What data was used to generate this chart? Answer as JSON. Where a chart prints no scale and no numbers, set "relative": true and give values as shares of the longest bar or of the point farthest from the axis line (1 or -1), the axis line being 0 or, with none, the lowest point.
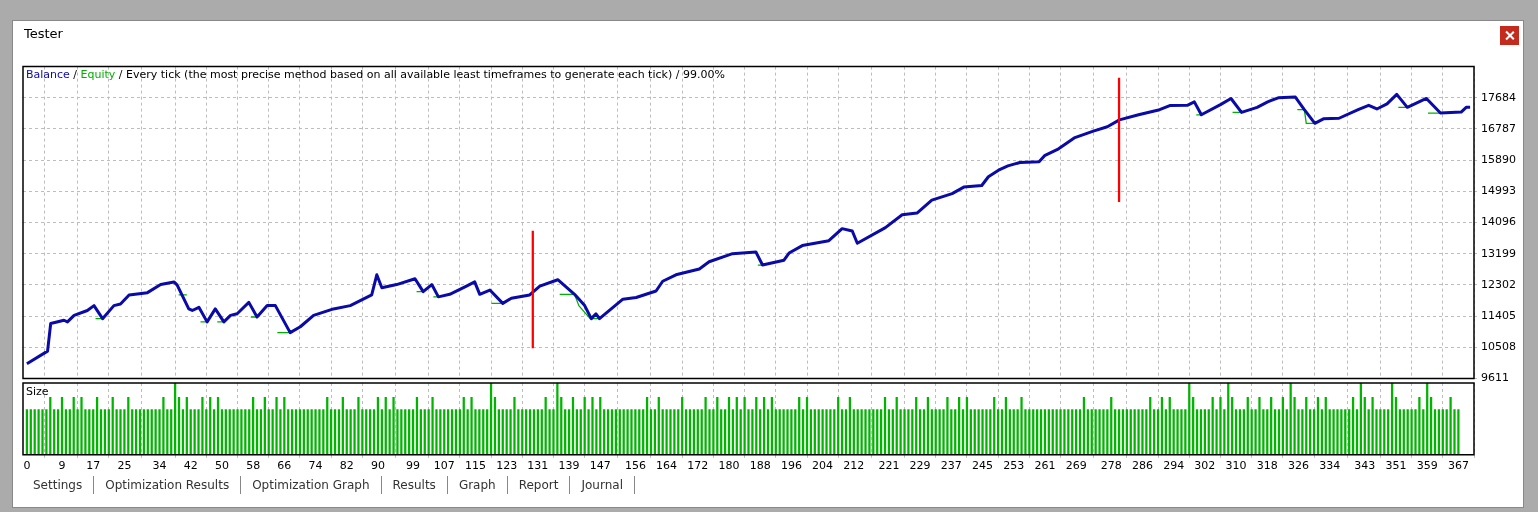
{
  "chart_data": [
    {
      "type": "line",
      "title": "Every tick (the most precise method based on all available least timeframes to generate each tick) / 99.00%",
      "annotations": [
        "Tester",
        "/"
      ],
      "legend": "top left",
      "grid": true,
      "tick_labels": "y",
      "xlim": [
        -1,
        371
      ],
      "xticks": [
        0,
        9,
        17,
        25,
        34,
        42,
        50,
        58,
        66,
        74,
        82,
        90,
        99,
        107,
        115,
        123,
        131,
        139,
        147,
        156,
        164,
        172,
        180,
        188,
        196,
        204,
        212,
        221,
        229,
        237,
        245,
        253,
        261,
        269,
        278,
        286,
        294,
        302,
        310,
        318,
        326,
        334,
        343,
        351,
        359,
        367
      ],
      "ylim": [
        9611,
        18581
      ],
      "yticks": [
        9611,
        10508,
        11405,
        12302,
        13199,
        14096,
        14993,
        15890,
        16787,
        17684
      ],
      "series": [
        {
          "name": "Balance",
          "color": "#0a0aa8",
          "x": [
            0,
            5.3,
            6.1,
            9.5,
            10.4,
            12.1,
            15.5,
            17.2,
            19.4,
            22.3,
            24,
            26.2,
            30.9,
            34.3,
            37.7,
            38.5,
            41.5,
            42.4,
            44.1,
            46.2,
            48.3,
            50.5,
            52.2,
            53.9,
            56.9,
            59,
            61.6,
            63.7,
            67.5,
            70.1,
            73.5,
            78.6,
            82.9,
            88.4,
            89.7,
            91,
            94.8,
            99.5,
            101.6,
            103.8,
            105.5,
            108.4,
            112.7,
            114.8,
            116.1,
            118.7,
            122,
            124.2,
            128.9,
            131.5,
            136.1,
            140.4,
            143,
            144.7,
            145.9,
            146.8,
            152.8,
            156.2,
            161.3,
            163,
            166.4,
            172.4,
            174.9,
            180.9,
            186.9,
            188.6,
            194.1,
            195.4,
            198.8,
            205.6,
            209,
            211.6,
            212.9,
            220.1,
            224.4,
            228.2,
            232,
            237.2,
            240.2,
            244.8,
            246.5,
            249.1,
            251.5,
            254.6,
            259.5,
            260.9,
            264.5,
            268.5,
            273.4,
            277,
            280.1,
            285,
            290.4,
            293,
            297.5,
            299.3,
            301.1,
            306,
            308.7,
            311.4,
            315.4,
            318.1,
            320.8,
            325.2,
            327.5,
            330.2,
            332.4,
            336.4,
            341.3,
            344,
            346.1,
            348.7,
            351.2,
            353.9,
            358.8,
            362.4,
            367.7,
            369,
            370
          ],
          "values": [
            10031,
            10396,
            11190,
            11284,
            11237,
            11425,
            11565,
            11705,
            11330,
            11705,
            11750,
            12013,
            12078,
            12310,
            12386,
            12302,
            11610,
            11565,
            11657,
            11237,
            11610,
            11237,
            11425,
            11471,
            11798,
            11377,
            11705,
            11705,
            10928,
            11097,
            11425,
            11610,
            11705,
            12013,
            12591,
            12218,
            12310,
            12478,
            12106,
            12310,
            11957,
            12030,
            12265,
            12386,
            12030,
            12153,
            11769,
            11918,
            12013,
            12265,
            12450,
            12030,
            11705,
            11330,
            11470,
            11330,
            11890,
            11937,
            12125,
            12406,
            12591,
            12760,
            12966,
            13199,
            13246,
            12872,
            13012,
            13218,
            13432,
            13572,
            13919,
            13852,
            13498,
            13947,
            14320,
            14368,
            14741,
            14928,
            15114,
            15161,
            15413,
            15601,
            15724,
            15822,
            15842,
            16019,
            16215,
            16529,
            16725,
            16851,
            17047,
            17195,
            17341,
            17459,
            17468,
            17566,
            17195,
            17487,
            17664,
            17263,
            17409,
            17566,
            17684,
            17703,
            17341,
            16949,
            17078,
            17095,
            17341,
            17468,
            17362,
            17508,
            17782,
            17409,
            17664,
            17244,
            17274,
            17409,
            17409
          ]
        },
        {
          "name": "Equity",
          "color": "#00b000",
          "x": [
            17.6,
            19.4,
            19.5,
            38.9,
            41,
            41.2,
            44.5,
            46.2,
            46.3,
            48.8,
            50.5,
            50.6,
            57.4,
            59,
            59.1,
            64.2,
            67.5,
            67.6,
            99.9,
            101.6,
            101.7,
            104.2,
            105.5,
            105.6,
            119.1,
            122,
            122.1,
            136.6,
            140.4,
            141.5,
            144.4,
            146.8,
            146.9,
            187.4,
            188.6,
            188.7,
            299.8,
            301.1,
            301.2,
            309.1,
            311.4,
            311.5,
            325.7,
            327.5,
            328,
            330.2,
            330.3,
            351.6,
            353.9,
            354,
            359.2,
            362.4
          ],
          "values": [
            11330,
            11330,
            null,
            12012,
            12012,
            null,
            11237,
            11237,
            null,
            11237,
            11237,
            null,
            11377,
            11377,
            null,
            10928,
            10928,
            null,
            12106,
            12106,
            null,
            11957,
            11957,
            null,
            11769,
            11769,
            null,
            12030,
            12030,
            11705,
            11330,
            11330,
            null,
            12872,
            12872,
            null,
            17195,
            17195,
            null,
            17263,
            17263,
            null,
            17341,
            17341,
            16949,
            16949,
            null,
            17409,
            17409,
            null,
            17244,
            17244
          ]
        },
        {
          "type": "bar",
          "color": "#ff0000",
          "x": [
            129.7,
            280
          ],
          "base": [
            10488,
            14696
          ],
          "values": [
            3364,
            3557
          ]
        }
      ]
    },
    {
      "type": "bar",
      "title": "Size",
      "relative": true,
      "grid": "x",
      "tick_labels": "x",
      "annotations": [
        "Settings",
        "Optimization Results",
        "Optimization Graph",
        "Results",
        "Graph",
        "Report",
        "Journal"
      ],
      "xlim": [
        -1,
        371
      ],
      "xticks": [
        0,
        9,
        17,
        25,
        34,
        42,
        50,
        58,
        66,
        74,
        82,
        90,
        99,
        107,
        115,
        123,
        131,
        139,
        147,
        156,
        164,
        172,
        180,
        188,
        196,
        204,
        212,
        221,
        229,
        237,
        245,
        253,
        261,
        269,
        278,
        286,
        294,
        302,
        310,
        318,
        326,
        334,
        343,
        351,
        359,
        367
      ],
      "series": [
        {
          "color": "#00b400",
          "x": [
            0,
            1,
            2,
            3,
            4,
            5,
            6,
            7,
            8,
            9,
            10,
            11,
            12,
            13,
            14,
            15,
            16,
            17,
            18,
            19,
            20,
            21,
            22,
            23,
            24,
            25,
            26,
            27,
            28,
            29,
            30,
            31,
            32,
            33,
            34,
            35,
            36,
            37,
            38,
            39,
            40,
            41,
            42,
            43,
            44,
            45,
            46,
            47,
            48,
            49,
            50,
            51,
            52,
            53,
            54,
            55,
            56,
            57,
            58,
            59,
            60,
            61,
            62,
            63,
            64,
            65,
            66,
            67,
            68,
            69,
            70,
            71,
            72,
            73,
            74,
            75,
            76,
            77,
            78,
            79,
            80,
            81,
            82,
            83,
            84,
            85,
            86,
            87,
            88,
            89,
            90,
            91,
            92,
            93,
            94,
            95,
            96,
            97,
            98,
            99,
            100,
            101,
            102,
            103,
            104,
            105,
            106,
            107,
            108,
            109,
            110,
            111,
            112,
            113,
            114,
            115,
            116,
            117,
            118,
            119,
            120,
            121,
            122,
            123,
            124,
            125,
            126,
            127,
            128,
            129,
            130,
            131,
            132,
            133,
            134,
            135,
            136,
            137,
            138,
            139,
            140,
            141,
            142,
            143,
            144,
            145,
            146,
            147,
            148,
            149,
            150,
            151,
            152,
            153,
            154,
            155,
            156,
            157,
            158,
            159,
            160,
            161,
            162,
            163,
            164,
            165,
            166,
            167,
            168,
            169,
            170,
            171,
            172,
            173,
            174,
            175,
            176,
            177,
            178,
            179,
            180,
            181,
            182,
            183,
            184,
            185,
            186,
            187,
            188,
            189,
            190,
            191,
            192,
            193,
            194,
            195,
            196,
            197,
            198,
            199,
            200,
            201,
            202,
            203,
            204,
            205,
            206,
            207,
            208,
            209,
            210,
            211,
            212,
            213,
            214,
            215,
            216,
            217,
            218,
            219,
            220,
            221,
            222,
            223,
            224,
            225,
            226,
            227,
            228,
            229,
            230,
            231,
            232,
            233,
            234,
            235,
            236,
            237,
            238,
            239,
            240,
            241,
            242,
            243,
            244,
            245,
            246,
            247,
            248,
            249,
            250,
            251,
            252,
            253,
            254,
            255,
            256,
            257,
            258,
            259,
            260,
            261,
            262,
            263,
            264,
            265,
            266,
            267,
            268,
            269,
            270,
            271,
            272,
            273,
            274,
            275,
            276,
            277,
            278,
            279,
            280,
            281,
            282,
            283,
            284,
            285,
            286,
            287,
            288,
            289,
            290,
            291,
            292,
            293,
            294,
            295,
            296,
            297,
            298,
            299,
            300,
            301,
            302,
            303,
            304,
            305,
            306,
            307,
            308,
            309,
            310,
            311,
            312,
            313,
            314,
            315,
            316,
            317,
            318,
            319,
            320,
            321,
            322,
            323,
            324,
            325,
            326,
            327,
            328,
            329,
            330,
            331,
            332,
            333,
            334,
            335,
            336,
            337,
            338,
            339,
            340,
            341,
            342,
            343,
            344,
            345,
            346,
            347,
            348,
            349,
            350,
            351,
            352,
            353,
            354,
            355,
            356,
            357,
            358,
            359,
            360,
            361,
            362,
            363,
            364,
            365,
            366,
            367
          ],
          "values": [
            0.63,
            0.63,
            0.63,
            0.63,
            0.63,
            0.63,
            0.8,
            0.63,
            0.63,
            0.8,
            0.63,
            0.63,
            0.8,
            0.63,
            0.8,
            0.63,
            0.63,
            0.63,
            0.8,
            0.63,
            0.63,
            0.63,
            0.8,
            0.63,
            0.63,
            0.63,
            0.8,
            0.63,
            0.63,
            0.63,
            0.63,
            0.63,
            0.63,
            0.63,
            0.63,
            0.8,
            0.63,
            0.63,
            1,
            0.8,
            0.63,
            0.8,
            0.63,
            0.63,
            0.63,
            0.8,
            0.63,
            0.8,
            0.63,
            0.8,
            0.63,
            0.63,
            0.63,
            0.63,
            0.63,
            0.63,
            0.63,
            0.63,
            0.8,
            0.63,
            0.63,
            0.8,
            0.63,
            0.63,
            0.8,
            0.63,
            0.8,
            0.63,
            0.63,
            0.63,
            0.63,
            0.63,
            0.63,
            0.63,
            0.63,
            0.63,
            0.63,
            0.8,
            0.63,
            0.63,
            0.63,
            0.8,
            0.63,
            0.63,
            0.63,
            0.8,
            0.63,
            0.63,
            0.63,
            0.63,
            0.8,
            0.63,
            0.8,
            0.63,
            0.8,
            0.63,
            0.63,
            0.63,
            0.63,
            0.63,
            0.8,
            0.63,
            0.63,
            0.63,
            0.8,
            0.63,
            0.63,
            0.63,
            0.63,
            0.63,
            0.63,
            0.63,
            0.8,
            0.63,
            0.8,
            0.63,
            0.63,
            0.63,
            0.63,
            1,
            0.8,
            0.63,
            0.63,
            0.63,
            0.63,
            0.8,
            0.63,
            0.63,
            0.63,
            0.63,
            0.63,
            0.63,
            0.63,
            0.8,
            0.63,
            0.63,
            1,
            0.8,
            0.63,
            0.63,
            0.8,
            0.63,
            0.63,
            0.8,
            0.63,
            0.8,
            0.63,
            0.8,
            0.63,
            0.63,
            0.63,
            0.63,
            0.63,
            0.63,
            0.63,
            0.63,
            0.63,
            0.63,
            0.63,
            0.8,
            0.63,
            0.63,
            0.8,
            0.63,
            0.63,
            0.63,
            0.63,
            0.63,
            0.8,
            0.63,
            0.63,
            0.63,
            0.63,
            0.63,
            0.8,
            0.63,
            0.63,
            0.8,
            0.63,
            0.63,
            0.8,
            0.63,
            0.8,
            0.63,
            0.8,
            0.63,
            0.63,
            0.8,
            0.63,
            0.8,
            0.63,
            0.8,
            0.63,
            0.63,
            0.63,
            0.63,
            0.63,
            0.63,
            0.8,
            0.63,
            0.8,
            0.63,
            0.63,
            0.63,
            0.63,
            0.63,
            0.63,
            0.63,
            0.8,
            0.63,
            0.63,
            0.8,
            0.63,
            0.63,
            0.63,
            0.63,
            0.63,
            0.63,
            0.63,
            0.63,
            0.8,
            0.63,
            0.63,
            0.8,
            0.63,
            0.63,
            0.63,
            0.63,
            0.8,
            0.63,
            0.63,
            0.8,
            0.63,
            0.63,
            0.63,
            0.63,
            0.8,
            0.63,
            0.63,
            0.8,
            0.63,
            0.8,
            0.63,
            0.63,
            0.63,
            0.63,
            0.63,
            0.63,
            0.8,
            0.63,
            0.63,
            0.8,
            0.63,
            0.63,
            0.63,
            0.8,
            0.63,
            0.63,
            0.63,
            0.63,
            0.63,
            0.63,
            0.63,
            0.63,
            0.63,
            0.63,
            0.63,
            0.63,
            0.63,
            0.63,
            0.63,
            0.8,
            0.63,
            0.63,
            0.63,
            0.63,
            0.63,
            0.63,
            0.8,
            0.63,
            0.63,
            0.63,
            0.63,
            0.63,
            0.63,
            0.63,
            0.63,
            0.63,
            0.8,
            0.63,
            0.63,
            0.8,
            0.63,
            0.8,
            0.63,
            0.63,
            0.63,
            0.63,
            1,
            0.8,
            0.63,
            0.63,
            0.63,
            0.63,
            0.8,
            0.63,
            0.8,
            0.63,
            1,
            0.8,
            0.63,
            0.63,
            0.63,
            0.8,
            0.63,
            0.63,
            0.8,
            0.63,
            0.63,
            0.8,
            0.63,
            0.63,
            0.8,
            0.63,
            1,
            0.8,
            0.63,
            0.63,
            0.8,
            0.63,
            0.63,
            0.8,
            0.63,
            0.8,
            0.63,
            0.63,
            0.63,
            0.63,
            0.63,
            0.63,
            0.8,
            0.63,
            1,
            0.8,
            0.63,
            0.8,
            0.63,
            0.63,
            0.63,
            0.63,
            1,
            0.8,
            0.63,
            0.63,
            0.63,
            0.63,
            0.63,
            0.8,
            0.63,
            1,
            0.8,
            0.63,
            0.63,
            0.63,
            0.63,
            0.8,
            0.63,
            0.63
          ]
        }
      ]
    }
  ]
}
